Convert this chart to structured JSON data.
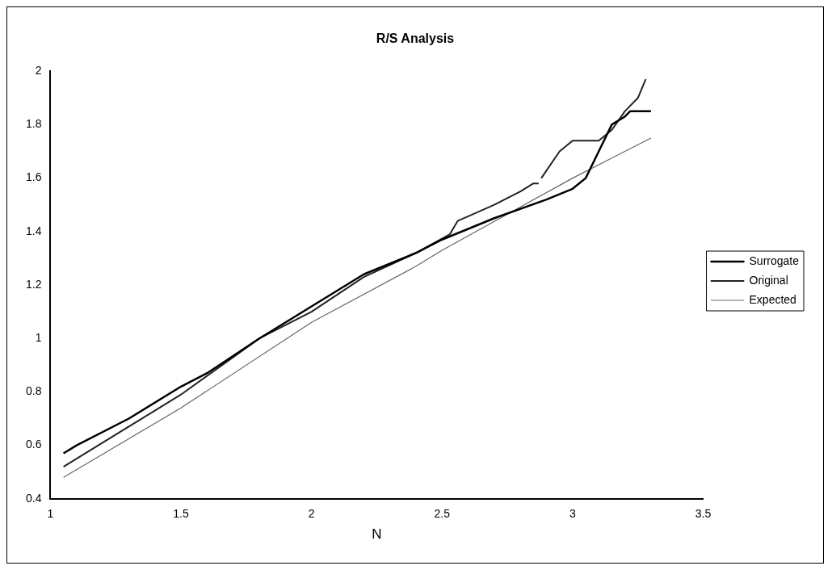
{
  "chart_data": {
    "type": "line",
    "title": "R/S Analysis",
    "xlabel": "N",
    "xlim": [
      1,
      3.5
    ],
    "xticks": [
      1,
      1.5,
      2,
      2.5,
      3,
      3.5
    ],
    "ylim": [
      0.4,
      2
    ],
    "yticks": [
      0.4,
      0.6,
      0.8,
      1,
      1.2,
      1.4,
      1.6,
      1.8,
      2
    ],
    "grid": false,
    "legend": "right",
    "marker": "none",
    "line_style": "solid",
    "series": [
      {
        "name": "Surrogate",
        "color": "#000000",
        "x": [
          1.05,
          1.1,
          1.3,
          1.5,
          1.6,
          1.8,
          2,
          2.2,
          2.4,
          2.5,
          2.7,
          2.9,
          3.0,
          3.05,
          3.1,
          3.15,
          3.2,
          3.22,
          3.3
        ],
        "values": [
          0.57,
          0.6,
          0.7,
          0.82,
          0.87,
          1.0,
          1.12,
          1.24,
          1.32,
          1.37,
          1.45,
          1.52,
          1.56,
          1.6,
          1.7,
          1.8,
          1.83,
          1.85,
          1.85
        ]
      },
      {
        "name": "Original",
        "color": "#222222",
        "x": [
          1.05,
          1.1,
          1.3,
          1.5,
          1.7,
          1.8,
          2,
          2.2,
          2.4,
          2.53,
          2.56,
          2.7,
          2.8,
          2.85,
          2.87,
          2.875,
          2.88,
          2.95,
          3.0,
          3.1,
          3.15,
          3.2,
          3.25,
          3.28
        ],
        "values": [
          0.52,
          0.55,
          0.67,
          0.79,
          0.93,
          1.0,
          1.1,
          1.23,
          1.32,
          1.39,
          1.44,
          1.5,
          1.55,
          1.58,
          1.58,
          null,
          1.6,
          1.7,
          1.74,
          1.74,
          1.78,
          1.85,
          1.9,
          1.97
        ]
      },
      {
        "name": "Expected",
        "color": "#666666",
        "x": [
          1.05,
          1.5,
          2,
          2.4,
          2.5,
          3,
          3.3
        ],
        "values": [
          0.48,
          0.74,
          1.06,
          1.27,
          1.33,
          1.6,
          1.75
        ]
      }
    ]
  }
}
